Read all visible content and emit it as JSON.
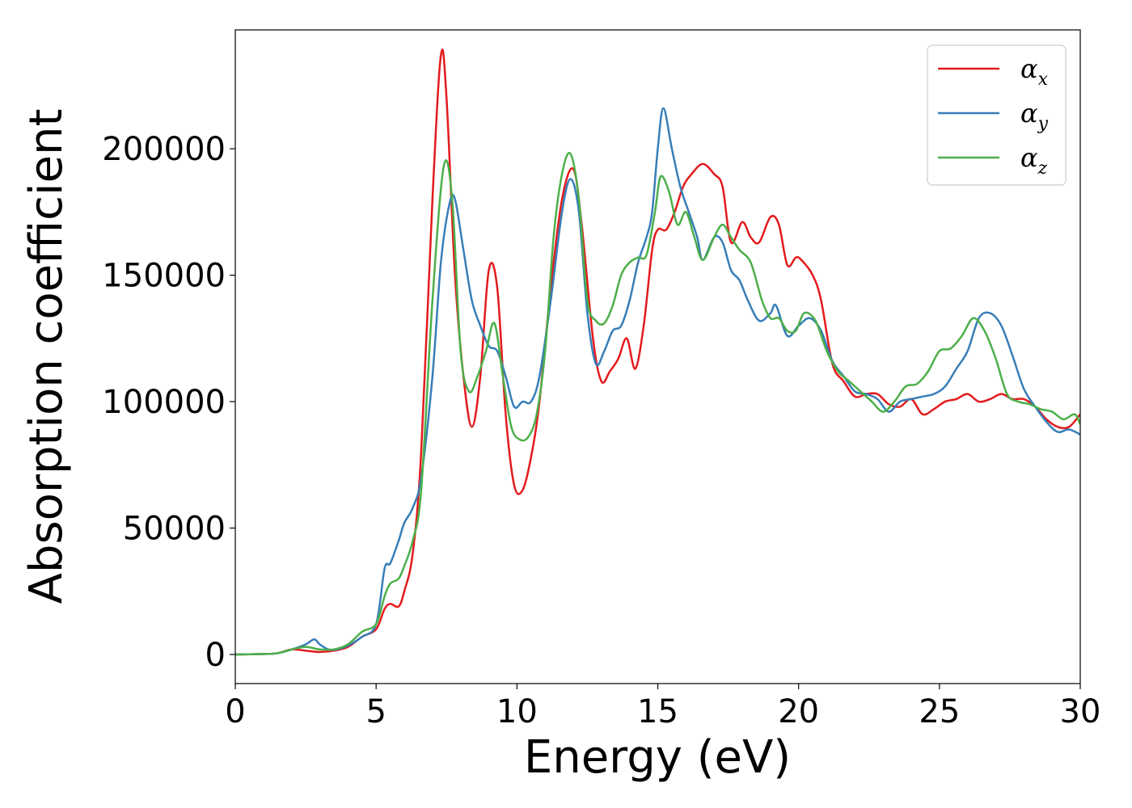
{
  "chart_data": {
    "type": "line",
    "xlabel": "Energy (eV)",
    "ylabel": "Absorption coefficient",
    "xlim": [
      0,
      30
    ],
    "ylim": [
      -11500,
      247000
    ],
    "xticks": [
      "0",
      "5",
      "10",
      "15",
      "20",
      "25",
      "30"
    ],
    "yticks": [
      "0",
      "50000",
      "100000",
      "150000",
      "200000"
    ],
    "grid": false,
    "legend_position": "top-right",
    "series": [
      {
        "name": "α_x",
        "name_base": "α",
        "name_sub": "x",
        "color": "#e41a1c",
        "x": [
          0,
          1,
          1.5,
          2,
          2.5,
          3,
          3.5,
          4,
          4.5,
          5,
          5.3,
          5.5,
          5.8,
          6,
          6.3,
          6.6,
          7,
          7.3,
          7.5,
          7.8,
          8.1,
          8.4,
          8.7,
          9,
          9.3,
          9.6,
          9.9,
          10.2,
          10.5,
          10.8,
          11.2,
          11.6,
          12,
          12.3,
          12.7,
          13,
          13.3,
          13.6,
          13.9,
          14.2,
          14.5,
          14.8,
          15,
          15.3,
          15.6,
          15.9,
          16.2,
          16.6,
          17,
          17.3,
          17.6,
          18,
          18.3,
          18.6,
          19,
          19.3,
          19.6,
          19.9,
          20.1,
          20.5,
          20.8,
          21.2,
          21.6,
          22,
          22.4,
          22.8,
          23.2,
          23.6,
          24,
          24.4,
          24.8,
          25.2,
          25.6,
          26,
          26.4,
          26.8,
          27.2,
          27.6,
          28,
          28.4,
          28.8,
          29.2,
          29.6,
          30
        ],
        "values": [
          0,
          200,
          500,
          2000,
          1500,
          1000,
          1500,
          3000,
          7000,
          10000,
          18000,
          20000,
          19000,
          25000,
          40000,
          80000,
          180000,
          237000,
          220000,
          150000,
          110000,
          90000,
          110000,
          152000,
          145000,
          95000,
          67000,
          65000,
          78000,
          100000,
          145000,
          180000,
          192000,
          170000,
          125000,
          108000,
          112000,
          117000,
          125000,
          113000,
          130000,
          160000,
          168000,
          168000,
          175000,
          185000,
          190000,
          194000,
          190000,
          185000,
          163000,
          171000,
          165000,
          163000,
          173000,
          170000,
          154000,
          157000,
          156000,
          150000,
          140000,
          115000,
          108000,
          102000,
          103000,
          103000,
          99000,
          98000,
          101000,
          95000,
          97000,
          100000,
          101000,
          103000,
          100000,
          101000,
          103000,
          101000,
          101000,
          98000,
          93000,
          90000,
          90000,
          95000
        ]
      },
      {
        "name": "α_y",
        "name_base": "α",
        "name_sub": "y",
        "color": "#377eb8",
        "x": [
          0,
          1,
          1.5,
          2,
          2.5,
          2.8,
          3,
          3.3,
          3.6,
          4,
          4.5,
          5,
          5.3,
          5.5,
          5.8,
          6,
          6.3,
          6.6,
          7,
          7.3,
          7.6,
          7.8,
          8.1,
          8.4,
          8.7,
          9,
          9.3,
          9.6,
          9.9,
          10.2,
          10.5,
          10.8,
          11.2,
          11.6,
          11.9,
          12.2,
          12.5,
          12.8,
          13.1,
          13.4,
          13.7,
          14,
          14.3,
          14.6,
          14.8,
          15,
          15.2,
          15.5,
          15.8,
          16.1,
          16.4,
          16.6,
          17,
          17.3,
          17.6,
          17.9,
          18.2,
          18.6,
          19,
          19.2,
          19.6,
          20,
          20.4,
          20.8,
          21.2,
          21.6,
          22,
          22.4,
          22.8,
          23.2,
          23.6,
          24,
          24.4,
          24.8,
          25.2,
          25.6,
          26,
          26.4,
          26.8,
          27.2,
          27.6,
          28,
          28.4,
          28.8,
          29.2,
          29.6,
          30
        ],
        "values": [
          0,
          200,
          500,
          2000,
          4000,
          6000,
          4000,
          2000,
          2000,
          3500,
          7000,
          12000,
          34000,
          36000,
          45000,
          52000,
          58000,
          70000,
          110000,
          155000,
          178000,
          180000,
          160000,
          140000,
          130000,
          122000,
          120000,
          110000,
          98000,
          100000,
          100000,
          110000,
          140000,
          175000,
          188000,
          175000,
          135000,
          115000,
          120000,
          128000,
          130000,
          140000,
          155000,
          165000,
          175000,
          200000,
          216000,
          200000,
          185000,
          175000,
          165000,
          156000,
          165000,
          163000,
          152000,
          148000,
          140000,
          132000,
          135000,
          138000,
          126000,
          130000,
          133000,
          128000,
          116000,
          110000,
          104000,
          103000,
          101000,
          96000,
          100000,
          101000,
          102000,
          103000,
          106000,
          113000,
          120000,
          133000,
          135000,
          130000,
          118000,
          105000,
          98000,
          92000,
          88000,
          89000,
          87000
        ]
      },
      {
        "name": "α_z",
        "name_base": "α",
        "name_sub": "z",
        "color": "#4daf4a",
        "x": [
          0,
          1,
          1.5,
          2,
          2.5,
          3,
          3.5,
          4,
          4.5,
          5,
          5.3,
          5.5,
          5.8,
          6,
          6.3,
          6.6,
          7,
          7.4,
          7.7,
          8,
          8.3,
          8.6,
          8.9,
          9.2,
          9.5,
          9.8,
          10.1,
          10.4,
          10.7,
          11,
          11.3,
          11.6,
          11.9,
          12.2,
          12.5,
          12.8,
          13.1,
          13.4,
          13.7,
          14,
          14.3,
          14.6,
          14.9,
          15.1,
          15.4,
          15.7,
          16,
          16.3,
          16.6,
          17,
          17.3,
          17.6,
          17.9,
          18.3,
          18.7,
          19,
          19.3,
          19.6,
          19.9,
          20.2,
          20.6,
          21,
          21.4,
          21.8,
          22.2,
          22.6,
          23,
          23.4,
          23.8,
          24.2,
          24.6,
          25,
          25.4,
          25.8,
          26.2,
          26.6,
          27,
          27.4,
          27.8,
          28.2,
          28.6,
          29,
          29.4,
          29.8,
          30
        ],
        "values": [
          0,
          200,
          500,
          2000,
          3000,
          2000,
          2000,
          4000,
          9000,
          12000,
          23000,
          28000,
          30000,
          35000,
          45000,
          65000,
          140000,
          193000,
          180000,
          120000,
          104000,
          110000,
          120000,
          131000,
          110000,
          90000,
          85000,
          86000,
          95000,
          120000,
          165000,
          190000,
          198000,
          180000,
          140000,
          132000,
          131000,
          138000,
          150000,
          155000,
          157000,
          158000,
          175000,
          189000,
          183000,
          170000,
          175000,
          165000,
          156000,
          165000,
          170000,
          165000,
          160000,
          155000,
          140000,
          133000,
          133000,
          128000,
          128000,
          135000,
          132000,
          120000,
          112000,
          108000,
          104000,
          100000,
          96000,
          100000,
          106000,
          107000,
          112000,
          120000,
          121000,
          126000,
          133000,
          128000,
          117000,
          103000,
          100000,
          99000,
          97000,
          96000,
          93000,
          95000,
          91000
        ]
      }
    ]
  }
}
